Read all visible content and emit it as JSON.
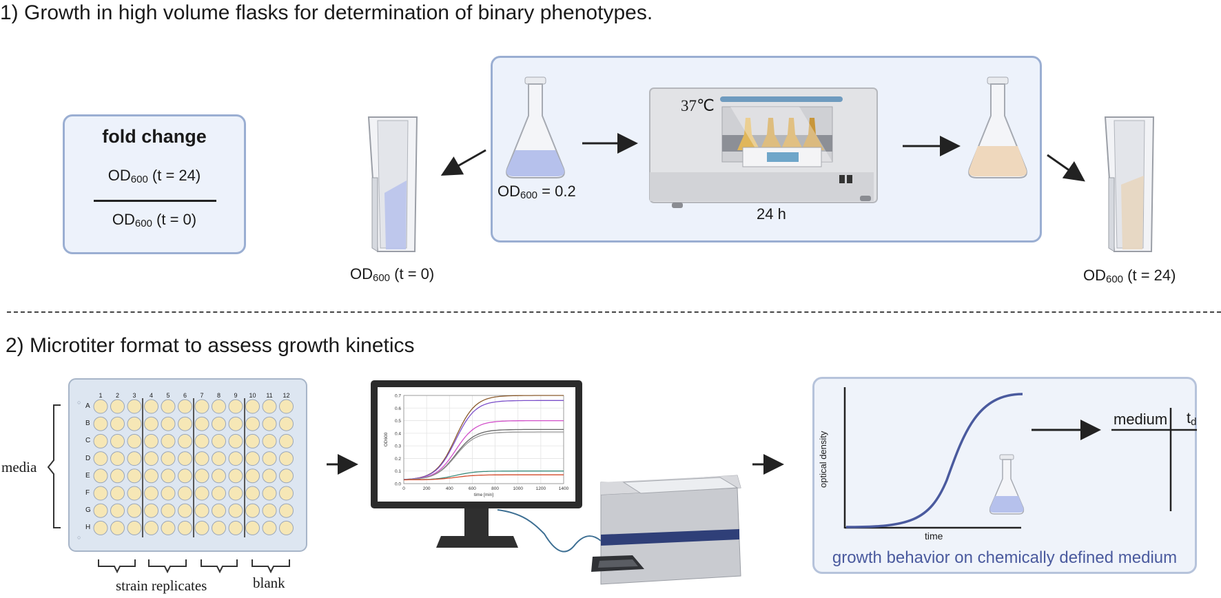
{
  "section1": {
    "title": "1) Growth in high volume flasks for determination of binary phenotypes.",
    "fold_change": {
      "title": "fold change",
      "numerator_main": "OD",
      "numerator_sub": "600",
      "numerator_tail": " (t = 24)",
      "denominator_main": "OD",
      "denominator_sub": "600",
      "denominator_tail": " (t = 0)"
    },
    "cuvette_left": {
      "main": "OD",
      "sub": "600",
      "tail": " (t = 0)"
    },
    "flask_start": {
      "main": "OD",
      "sub": "600",
      "tail": "  = 0.2"
    },
    "incubator_temp": "37℃",
    "incubation_time": "24 h",
    "cuvette_right": {
      "main": "OD",
      "sub": "600",
      "tail": " (t = 24)"
    }
  },
  "section2": {
    "title": "2) Microtiter format to assess growth kinetics",
    "plate": {
      "columns": [
        "1",
        "2",
        "3",
        "4",
        "5",
        "6",
        "7",
        "8",
        "9",
        "10",
        "11",
        "12"
      ],
      "rows": [
        "A",
        "B",
        "C",
        "D",
        "E",
        "F",
        "G",
        "H"
      ],
      "media_label": "media",
      "strain_label": "strain replicates",
      "blank_label": "blank"
    },
    "monitor_chart": {
      "ylabel": "OD600",
      "xlabel": "time [min]",
      "xticks": [
        "0",
        "200",
        "400",
        "600",
        "800",
        "1000",
        "1200",
        "1400"
      ],
      "yticks": [
        "0.0",
        "0.1",
        "0.2",
        "0.3",
        "0.4",
        "0.5",
        "0.6",
        "0.7"
      ]
    },
    "growth": {
      "ylabel": "optical density",
      "xlabel": "time",
      "caption": "growth behavior on chemically defined medium",
      "table_col1": "medium",
      "table_col2_main": "t",
      "table_col2_sub": "d"
    }
  },
  "colors": {
    "box_border": "#9aaed2",
    "box_fill": "#edf2fb",
    "curve": "#4a5a9e",
    "well": "#f6e7b6",
    "caption": "#4a5a9e"
  }
}
